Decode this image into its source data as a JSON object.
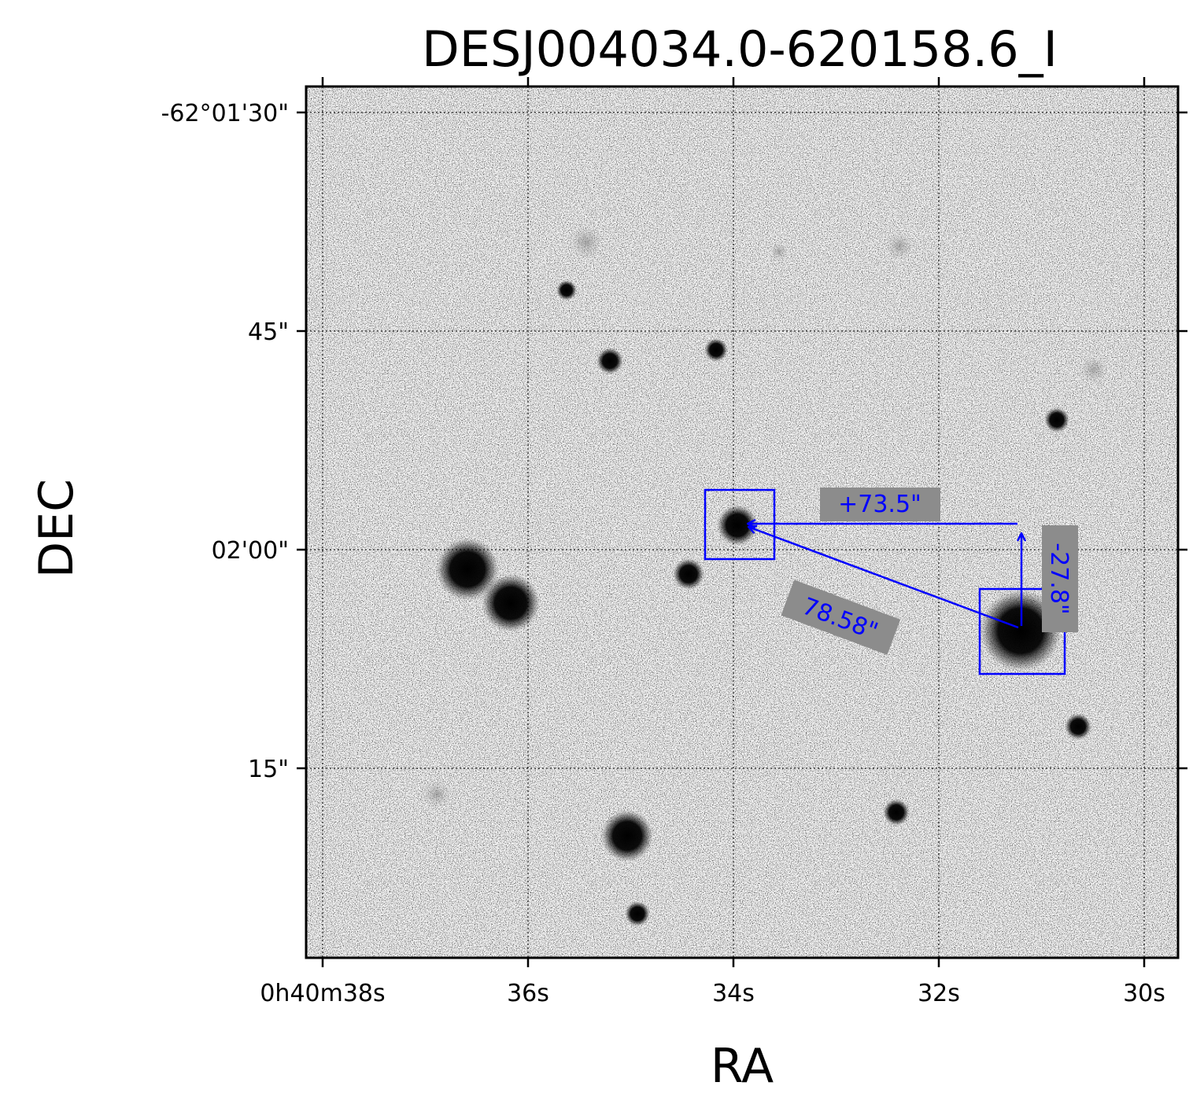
{
  "figure": {
    "title": "DESJ004034.0-620158.6_I",
    "xlabel": "RA",
    "ylabel": "DEC",
    "x_ticks": [
      "0h40m38s",
      "36s",
      "34s",
      "32s",
      "30s"
    ],
    "y_ticks": [
      "-62°01'30\"",
      "45\"",
      "02'00\"",
      "15\""
    ],
    "grid": true,
    "colors": {
      "annotation": "#0000ff",
      "label_bg": "#8c8c8c",
      "frame": "#000000"
    }
  },
  "annotations": {
    "ra_offset": "+73.5\"",
    "dec_offset": "-27.8\"",
    "separation": "78.58\""
  },
  "sources": {
    "target": {
      "ra_s": 34.0,
      "dec_arcsec": 121.4
    },
    "reference": {
      "ra_s": 31.2,
      "dec_arcsec": 126.1
    }
  }
}
